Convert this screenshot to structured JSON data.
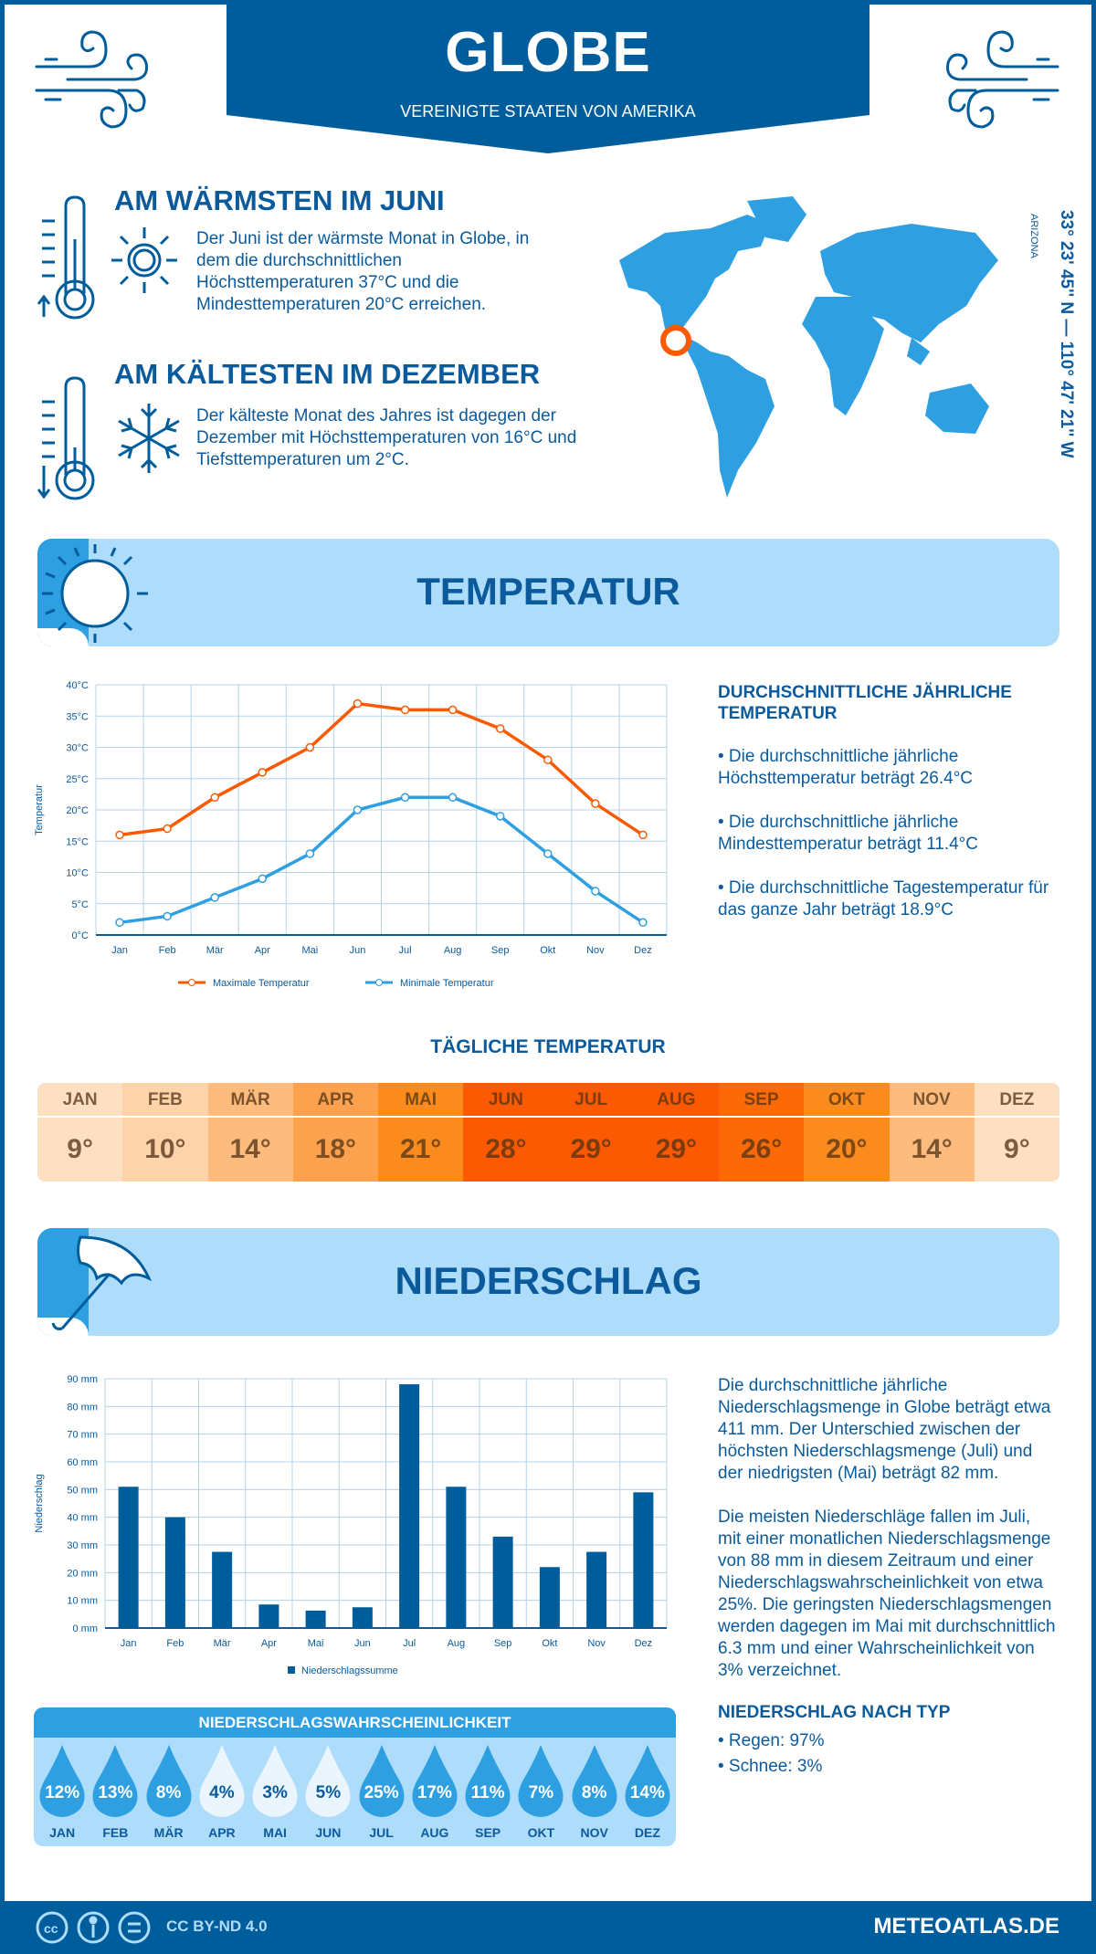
{
  "header": {
    "title": "GLOBE",
    "subtitle": "VEREINIGTE STAATEN VON AMERIKA"
  },
  "warmest": {
    "heading": "AM WÄRMSTEN IM JUNI",
    "text": "Der Juni ist der wärmste Monat in Globe, in dem die durchschnittlichen Höchsttemperaturen 37°C und die Mindesttemperaturen 20°C erreichen."
  },
  "coldest": {
    "heading": "AM KÄLTESTEN IM DEZEMBER",
    "text": "Der kälteste Monat des Jahres ist dagegen der Dezember mit Höchsttemperaturen von 16°C und Tiefsttemperaturen um 2°C."
  },
  "location": {
    "coords": "33° 23' 45'' N — 110° 47' 21'' W",
    "region": "ARIZONA"
  },
  "temperature_section": {
    "title": "TEMPERATUR",
    "summary_heading": "DURCHSCHNITTLICHE JÄHRLICHE TEMPERATUR",
    "bullets": [
      "• Die durchschnittliche jährliche Höchsttemperatur beträgt 26.4°C",
      "• Die durchschnittliche jährliche Mindesttemperatur beträgt 11.4°C",
      "• Die durchschnittliche Tagestemperatur für das ganze Jahr beträgt 18.9°C"
    ]
  },
  "daily": {
    "title": "TÄGLICHE TEMPERATUR",
    "months": [
      "JAN",
      "FEB",
      "MÄR",
      "APR",
      "MAI",
      "JUN",
      "JUL",
      "AUG",
      "SEP",
      "OKT",
      "NOV",
      "DEZ"
    ],
    "values": [
      "9°",
      "10°",
      "14°",
      "18°",
      "21°",
      "28°",
      "29°",
      "29°",
      "26°",
      "20°",
      "14°",
      "9°"
    ],
    "colors": [
      "#fde0c2",
      "#fdd4aa",
      "#fdbc7e",
      "#fca24f",
      "#fb8b1d",
      "#fc5a02",
      "#fc5a02",
      "#fc5a02",
      "#fc6a08",
      "#fb8b1d",
      "#fdbc7e",
      "#fde0c2"
    ]
  },
  "precip_section": {
    "title": "NIEDERSCHLAG",
    "text1": "Die durchschnittliche jährliche Niederschlagsmenge in Globe beträgt etwa 411 mm. Der Unterschied zwischen der höchsten Niederschlagsmenge (Juli) und der niedrigsten (Mai) beträgt 82 mm.",
    "text2": "Die meisten Niederschläge fallen im Juli, mit einer monatlichen Niederschlagsmenge von 88 mm in diesem Zeitraum und einer Niederschlagswahrscheinlichkeit von etwa 25%. Die geringsten Niederschlagsmengen werden dagegen im Mai mit durchschnittlich 6.3 mm und einer Wahrscheinlichkeit von 3% verzeichnet.",
    "type_heading": "NIEDERSCHLAG NACH TYP",
    "types": [
      "• Regen: 97%",
      "• Schnee: 3%"
    ]
  },
  "probability": {
    "title": "NIEDERSCHLAGSWAHRSCHEINLICHKEIT",
    "months": [
      "JAN",
      "FEB",
      "MÄR",
      "APR",
      "MAI",
      "JUN",
      "JUL",
      "AUG",
      "SEP",
      "OKT",
      "NOV",
      "DEZ"
    ],
    "values": [
      "12%",
      "13%",
      "8%",
      "4%",
      "3%",
      "5%",
      "25%",
      "17%",
      "11%",
      "7%",
      "8%",
      "14%"
    ]
  },
  "footer": {
    "license": "CC BY-ND 4.0",
    "site": "METEOATLAS.DE"
  },
  "colors": {
    "brand": "#005d9c",
    "max": "#fc5a02",
    "min": "#2e9fe0",
    "bar": "#005d9c",
    "light": "#aedcfb"
  },
  "chart_data": [
    {
      "type": "line",
      "categories": [
        "Jan",
        "Feb",
        "Mär",
        "Apr",
        "Mai",
        "Jun",
        "Jul",
        "Aug",
        "Sep",
        "Okt",
        "Nov",
        "Dez"
      ],
      "ylabel": "Temperatur",
      "ylim": [
        0,
        40
      ],
      "yticks": [
        "0°C",
        "5°C",
        "10°C",
        "15°C",
        "20°C",
        "25°C",
        "30°C",
        "35°C",
        "40°C"
      ],
      "grid": true,
      "legend": "bottom",
      "series": [
        {
          "name": "Maximale Temperatur",
          "values": [
            16,
            17,
            22,
            26,
            30,
            37,
            36,
            36,
            33,
            28,
            21,
            16
          ]
        },
        {
          "name": "Minimale Temperatur",
          "values": [
            2,
            3,
            6,
            9,
            13,
            20,
            22,
            22,
            19,
            13,
            7,
            2
          ]
        }
      ]
    },
    {
      "type": "bar",
      "categories": [
        "Jan",
        "Feb",
        "Mär",
        "Apr",
        "Mai",
        "Jun",
        "Jul",
        "Aug",
        "Sep",
        "Okt",
        "Nov",
        "Dez"
      ],
      "ylabel": "Niederschlag",
      "ylim": [
        0,
        90
      ],
      "yticks": [
        "0 mm",
        "10 mm",
        "20 mm",
        "30 mm",
        "40 mm",
        "50 mm",
        "60 mm",
        "70 mm",
        "80 mm",
        "90 mm"
      ],
      "grid": true,
      "legend": "bottom",
      "series": [
        {
          "name": "Niederschlagssumme",
          "values": [
            51,
            40,
            27.5,
            8.5,
            6.3,
            7.5,
            88,
            51,
            33,
            22,
            27.5,
            49
          ]
        }
      ]
    }
  ]
}
